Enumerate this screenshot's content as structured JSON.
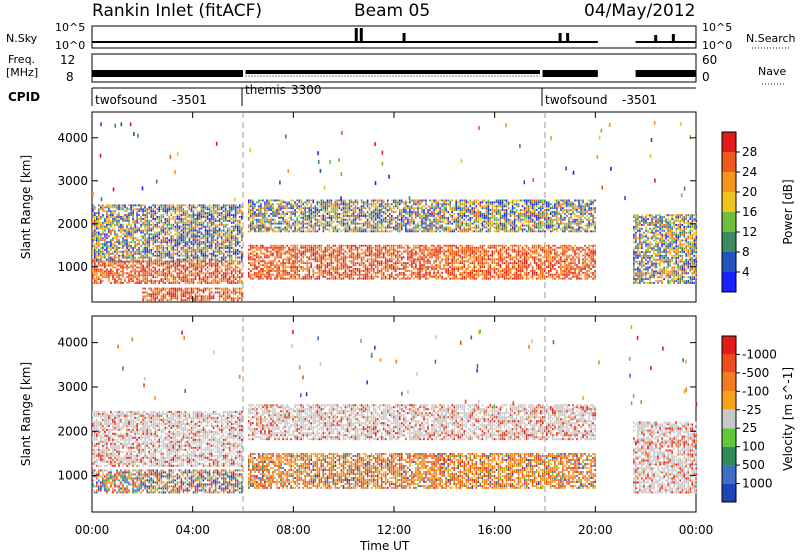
{
  "header": {
    "title": "Rankin Inlet (fitACF)",
    "beam": "Beam 05",
    "date": "04/May/2012"
  },
  "nsky": {
    "label": "N.Sky",
    "left_ticks": [
      "10^5",
      "10^0"
    ],
    "right_ticks": [
      "10^5",
      "10^0"
    ],
    "right_label": "N.Search"
  },
  "freq": {
    "label_line1": "Freq.",
    "label_line2": "[MHz]",
    "left_ticks": [
      "12",
      "8"
    ],
    "right_ticks": [
      "60",
      "0"
    ],
    "right_label": "Nave"
  },
  "cpid": {
    "label": "CPID",
    "segments": [
      {
        "name": "twofsound",
        "id": "-3501"
      },
      {
        "name": "themis",
        "id": "3300"
      },
      {
        "name": "twofsound",
        "id": "-3501"
      }
    ]
  },
  "chart_data": [
    {
      "type": "heatmap",
      "parameter": "Power",
      "ylabel": "Slant Range [km]",
      "xlabel": "",
      "xlim": [
        "00:00",
        "24:00"
      ],
      "ylim": [
        180,
        4600
      ],
      "y_ticks": [
        1000,
        2000,
        3000,
        4000
      ],
      "x_tick_labels": [
        "00:00",
        "04:00",
        "08:00",
        "12:00",
        "16:00",
        "20:00",
        "00:00"
      ],
      "colorbar": {
        "label": "Power [dB]",
        "ticks": [
          "4",
          "8",
          "12",
          "16",
          "20",
          "24",
          "28"
        ],
        "colors": [
          "#1a20ff",
          "#2552c0",
          "#3b8a63",
          "#6fbf3f",
          "#f2c31a",
          "#f7941d",
          "#ef5a1c",
          "#e41a1a"
        ]
      },
      "echo_bands": [
        {
          "start_hr": 0.0,
          "end_hr": 6.0,
          "range_km": [
            1100,
            2450
          ],
          "level": "moderate"
        },
        {
          "start_hr": 0.0,
          "end_hr": 6.0,
          "range_km": [
            600,
            1100
          ],
          "level": "strong"
        },
        {
          "start_hr": 2.0,
          "end_hr": 6.0,
          "range_km": [
            200,
            500
          ],
          "level": "strong"
        },
        {
          "start_hr": 6.2,
          "end_hr": 20.0,
          "range_km": [
            1800,
            2550
          ],
          "level": "moderate"
        },
        {
          "start_hr": 6.2,
          "end_hr": 20.0,
          "range_km": [
            700,
            1500
          ],
          "level": "strong"
        },
        {
          "start_hr": 21.5,
          "end_hr": 24.0,
          "range_km": [
            600,
            2200
          ],
          "level": "moderate"
        }
      ]
    },
    {
      "type": "heatmap",
      "parameter": "Velocity",
      "ylabel": "Slant Range [km]",
      "xlabel": "Time UT",
      "xlim": [
        "00:00",
        "24:00"
      ],
      "ylim": [
        180,
        4600
      ],
      "y_ticks": [
        1000,
        2000,
        3000,
        4000
      ],
      "x_tick_labels": [
        "00:00",
        "04:00",
        "08:00",
        "12:00",
        "16:00",
        "20:00",
        "00:00"
      ],
      "colorbar": {
        "label": "Velocity [m s^-1]",
        "ticks": [
          "1000",
          "500",
          "100",
          "25",
          "-25",
          "-100",
          "-500",
          "-1000"
        ],
        "colors": [
          "#2043b8",
          "#3d6fc9",
          "#2e8b57",
          "#5fc93a",
          "#c8c8c8",
          "#f7a21d",
          "#f57c1a",
          "#ee4c1c",
          "#e41a1a"
        ]
      },
      "echo_bands": [
        {
          "start_hr": 0.0,
          "end_hr": 6.0,
          "range_km": [
            1200,
            2450
          ],
          "level": "near-zero"
        },
        {
          "start_hr": 0.0,
          "end_hr": 6.0,
          "range_km": [
            600,
            1100
          ],
          "level": "mixed"
        },
        {
          "start_hr": 6.2,
          "end_hr": 20.0,
          "range_km": [
            1800,
            2600
          ],
          "level": "near-zero"
        },
        {
          "start_hr": 6.2,
          "end_hr": 20.0,
          "range_km": [
            700,
            1500
          ],
          "level": "away"
        },
        {
          "start_hr": 21.5,
          "end_hr": 24.0,
          "range_km": [
            600,
            2200
          ],
          "level": "near-zero"
        }
      ]
    }
  ]
}
